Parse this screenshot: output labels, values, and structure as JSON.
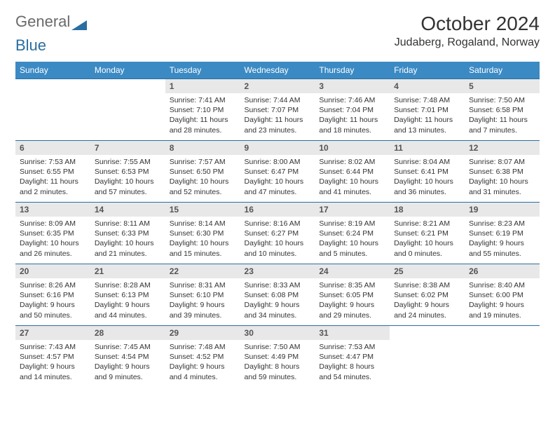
{
  "brand_a": "General",
  "brand_b": "Blue",
  "brand_colors": {
    "gray": "#7a7a7a",
    "blue": "#2a6fa0"
  },
  "month_title": "October 2024",
  "location": "Judaberg, Rogaland, Norway",
  "header_bg": "#3b8ac4",
  "header_fg": "#ffffff",
  "row_border": "#2a6fa0",
  "daynum_bg": "#e8e8e8",
  "weekdays": [
    "Sunday",
    "Monday",
    "Tuesday",
    "Wednesday",
    "Thursday",
    "Friday",
    "Saturday"
  ],
  "weeks": [
    [
      {
        "empty": true
      },
      {
        "empty": true
      },
      {
        "n": "1",
        "sunrise": "Sunrise: 7:41 AM",
        "sunset": "Sunset: 7:10 PM",
        "daylight": "Daylight: 11 hours and 28 minutes."
      },
      {
        "n": "2",
        "sunrise": "Sunrise: 7:44 AM",
        "sunset": "Sunset: 7:07 PM",
        "daylight": "Daylight: 11 hours and 23 minutes."
      },
      {
        "n": "3",
        "sunrise": "Sunrise: 7:46 AM",
        "sunset": "Sunset: 7:04 PM",
        "daylight": "Daylight: 11 hours and 18 minutes."
      },
      {
        "n": "4",
        "sunrise": "Sunrise: 7:48 AM",
        "sunset": "Sunset: 7:01 PM",
        "daylight": "Daylight: 11 hours and 13 minutes."
      },
      {
        "n": "5",
        "sunrise": "Sunrise: 7:50 AM",
        "sunset": "Sunset: 6:58 PM",
        "daylight": "Daylight: 11 hours and 7 minutes."
      }
    ],
    [
      {
        "n": "6",
        "sunrise": "Sunrise: 7:53 AM",
        "sunset": "Sunset: 6:55 PM",
        "daylight": "Daylight: 11 hours and 2 minutes."
      },
      {
        "n": "7",
        "sunrise": "Sunrise: 7:55 AM",
        "sunset": "Sunset: 6:53 PM",
        "daylight": "Daylight: 10 hours and 57 minutes."
      },
      {
        "n": "8",
        "sunrise": "Sunrise: 7:57 AM",
        "sunset": "Sunset: 6:50 PM",
        "daylight": "Daylight: 10 hours and 52 minutes."
      },
      {
        "n": "9",
        "sunrise": "Sunrise: 8:00 AM",
        "sunset": "Sunset: 6:47 PM",
        "daylight": "Daylight: 10 hours and 47 minutes."
      },
      {
        "n": "10",
        "sunrise": "Sunrise: 8:02 AM",
        "sunset": "Sunset: 6:44 PM",
        "daylight": "Daylight: 10 hours and 41 minutes."
      },
      {
        "n": "11",
        "sunrise": "Sunrise: 8:04 AM",
        "sunset": "Sunset: 6:41 PM",
        "daylight": "Daylight: 10 hours and 36 minutes."
      },
      {
        "n": "12",
        "sunrise": "Sunrise: 8:07 AM",
        "sunset": "Sunset: 6:38 PM",
        "daylight": "Daylight: 10 hours and 31 minutes."
      }
    ],
    [
      {
        "n": "13",
        "sunrise": "Sunrise: 8:09 AM",
        "sunset": "Sunset: 6:35 PM",
        "daylight": "Daylight: 10 hours and 26 minutes."
      },
      {
        "n": "14",
        "sunrise": "Sunrise: 8:11 AM",
        "sunset": "Sunset: 6:33 PM",
        "daylight": "Daylight: 10 hours and 21 minutes."
      },
      {
        "n": "15",
        "sunrise": "Sunrise: 8:14 AM",
        "sunset": "Sunset: 6:30 PM",
        "daylight": "Daylight: 10 hours and 15 minutes."
      },
      {
        "n": "16",
        "sunrise": "Sunrise: 8:16 AM",
        "sunset": "Sunset: 6:27 PM",
        "daylight": "Daylight: 10 hours and 10 minutes."
      },
      {
        "n": "17",
        "sunrise": "Sunrise: 8:19 AM",
        "sunset": "Sunset: 6:24 PM",
        "daylight": "Daylight: 10 hours and 5 minutes."
      },
      {
        "n": "18",
        "sunrise": "Sunrise: 8:21 AM",
        "sunset": "Sunset: 6:21 PM",
        "daylight": "Daylight: 10 hours and 0 minutes."
      },
      {
        "n": "19",
        "sunrise": "Sunrise: 8:23 AM",
        "sunset": "Sunset: 6:19 PM",
        "daylight": "Daylight: 9 hours and 55 minutes."
      }
    ],
    [
      {
        "n": "20",
        "sunrise": "Sunrise: 8:26 AM",
        "sunset": "Sunset: 6:16 PM",
        "daylight": "Daylight: 9 hours and 50 minutes."
      },
      {
        "n": "21",
        "sunrise": "Sunrise: 8:28 AM",
        "sunset": "Sunset: 6:13 PM",
        "daylight": "Daylight: 9 hours and 44 minutes."
      },
      {
        "n": "22",
        "sunrise": "Sunrise: 8:31 AM",
        "sunset": "Sunset: 6:10 PM",
        "daylight": "Daylight: 9 hours and 39 minutes."
      },
      {
        "n": "23",
        "sunrise": "Sunrise: 8:33 AM",
        "sunset": "Sunset: 6:08 PM",
        "daylight": "Daylight: 9 hours and 34 minutes."
      },
      {
        "n": "24",
        "sunrise": "Sunrise: 8:35 AM",
        "sunset": "Sunset: 6:05 PM",
        "daylight": "Daylight: 9 hours and 29 minutes."
      },
      {
        "n": "25",
        "sunrise": "Sunrise: 8:38 AM",
        "sunset": "Sunset: 6:02 PM",
        "daylight": "Daylight: 9 hours and 24 minutes."
      },
      {
        "n": "26",
        "sunrise": "Sunrise: 8:40 AM",
        "sunset": "Sunset: 6:00 PM",
        "daylight": "Daylight: 9 hours and 19 minutes."
      }
    ],
    [
      {
        "n": "27",
        "sunrise": "Sunrise: 7:43 AM",
        "sunset": "Sunset: 4:57 PM",
        "daylight": "Daylight: 9 hours and 14 minutes."
      },
      {
        "n": "28",
        "sunrise": "Sunrise: 7:45 AM",
        "sunset": "Sunset: 4:54 PM",
        "daylight": "Daylight: 9 hours and 9 minutes."
      },
      {
        "n": "29",
        "sunrise": "Sunrise: 7:48 AM",
        "sunset": "Sunset: 4:52 PM",
        "daylight": "Daylight: 9 hours and 4 minutes."
      },
      {
        "n": "30",
        "sunrise": "Sunrise: 7:50 AM",
        "sunset": "Sunset: 4:49 PM",
        "daylight": "Daylight: 8 hours and 59 minutes."
      },
      {
        "n": "31",
        "sunrise": "Sunrise: 7:53 AM",
        "sunset": "Sunset: 4:47 PM",
        "daylight": "Daylight: 8 hours and 54 minutes."
      },
      {
        "empty": true
      },
      {
        "empty": true
      }
    ]
  ]
}
